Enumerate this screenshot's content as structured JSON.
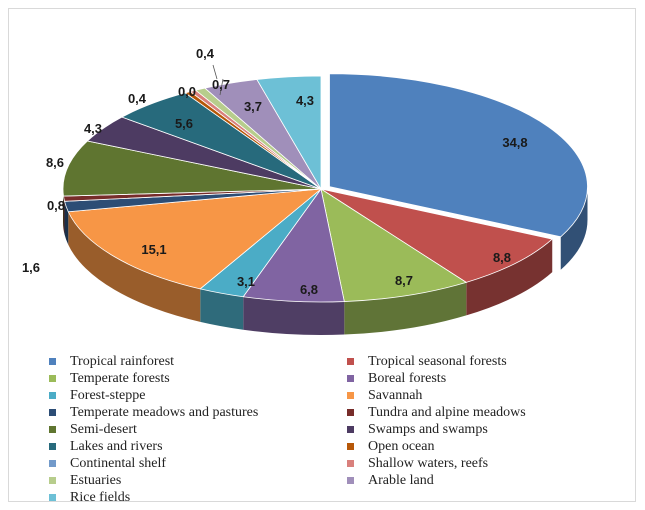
{
  "chart_data": {
    "type": "pie",
    "style": "3d-exploded",
    "title": "",
    "categories": [
      "Tropical rainforest",
      "Tropical seasonal forests",
      "Temperate forests",
      "Boreal forests",
      "Forest-steppe",
      "Savannah",
      "Temperate meadows and pastures",
      "Tundra and alpine meadows",
      "Semi-desert",
      "Swamps and swamps",
      "Lakes and rivers",
      "Open ocean",
      "Continental shelf",
      "Shallow waters, reefs",
      "Estuaries",
      "Arable land",
      "Rice fields"
    ],
    "values": [
      34.8,
      8.8,
      8.7,
      6.8,
      3.1,
      15.1,
      1.6,
      0.8,
      8.6,
      4.3,
      5.6,
      0.4,
      0.0,
      0.4,
      0.7,
      3.7,
      4.3
    ],
    "labels": [
      "34,8",
      "8,8",
      "8,7",
      "6,8",
      "3,1",
      "15,1",
      "1,6",
      "0,8",
      "8,6",
      "4,3",
      "5,6",
      "0,4",
      "0,0",
      "0,4",
      "0,7",
      "3,7",
      "4,3"
    ],
    "colors": [
      "#4f81bd",
      "#c0504d",
      "#9bbb59",
      "#8064a2",
      "#4bacc6",
      "#f79646",
      "#2c4d75",
      "#772c2a",
      "#5f7530",
      "#4d3b62",
      "#276a7c",
      "#b65708",
      "#729aca",
      "#d9807c",
      "#b7cd8c",
      "#a08fba",
      "#6dc0d6"
    ],
    "legend_position": "bottom"
  }
}
